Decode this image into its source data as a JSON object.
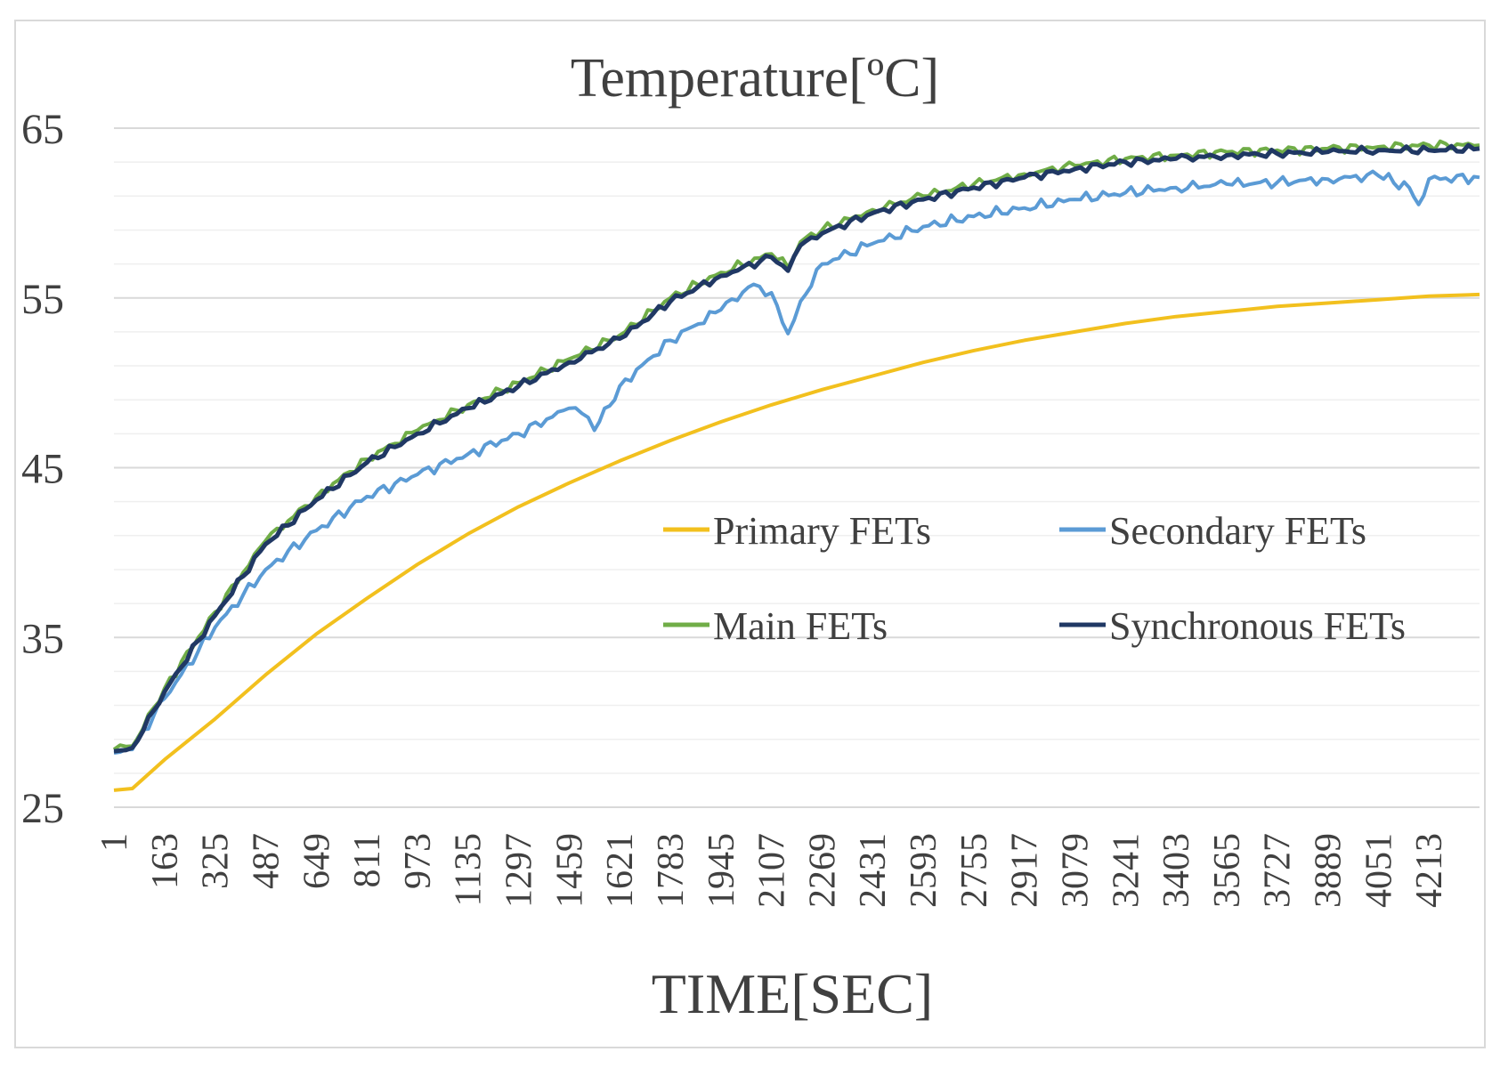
{
  "chart_data": {
    "type": "line",
    "title": "Temperature[ºC]",
    "xlabel": "TIME[SEC]",
    "ylabel": "",
    "ylim": [
      25,
      65
    ],
    "y_ticks": [
      "25",
      "35",
      "45",
      "55",
      "65"
    ],
    "x_range": [
      1,
      4375
    ],
    "x_tick_labels": [
      "1",
      "163",
      "325",
      "487",
      "649",
      "811",
      "973",
      "1135",
      "1297",
      "1459",
      "1621",
      "1783",
      "1945",
      "2107",
      "2269",
      "2431",
      "2593",
      "2755",
      "2917",
      "3079",
      "3241",
      "3403",
      "3565",
      "3727",
      "3889",
      "4051",
      "4213"
    ],
    "grid": "horizontal",
    "legend_position": "center-right",
    "series": [
      {
        "name": "Primary FETs",
        "color": "#f2c01e",
        "x": [
          1,
          60,
          163,
          325,
          487,
          649,
          811,
          973,
          1135,
          1297,
          1459,
          1621,
          1783,
          1945,
          2107,
          2269,
          2431,
          2593,
          2755,
          2917,
          3079,
          3241,
          3403,
          3565,
          3727,
          3889,
          4051,
          4213,
          4375
        ],
        "values": [
          26.0,
          26.1,
          27.8,
          30.2,
          32.8,
          35.2,
          37.3,
          39.3,
          41.1,
          42.7,
          44.1,
          45.4,
          46.6,
          47.7,
          48.7,
          49.6,
          50.4,
          51.2,
          51.9,
          52.5,
          53.0,
          53.5,
          53.9,
          54.2,
          54.5,
          54.7,
          54.9,
          55.1,
          55.2
        ]
      },
      {
        "name": "Secondary FETs",
        "color": "#5b9bd5",
        "x": [
          1,
          60,
          163,
          325,
          487,
          649,
          811,
          973,
          1135,
          1297,
          1459,
          1500,
          1540,
          1621,
          1783,
          1945,
          2050,
          2107,
          2160,
          2200,
          2269,
          2431,
          2593,
          2755,
          2917,
          3079,
          3241,
          3403,
          3565,
          3727,
          3889,
          4051,
          4150,
          4180,
          4213,
          4375
        ],
        "values": [
          28.2,
          28.4,
          31.4,
          35.6,
          39.0,
          41.3,
          43.3,
          44.6,
          45.8,
          47.0,
          48.5,
          48.2,
          47.2,
          49.8,
          52.5,
          54.3,
          55.8,
          55.3,
          52.9,
          54.8,
          57.0,
          58.2,
          59.2,
          59.8,
          60.3,
          60.8,
          61.2,
          61.5,
          61.7,
          61.8,
          62.0,
          62.2,
          61.5,
          60.5,
          62.0,
          62.1
        ]
      },
      {
        "name": "Main FETs",
        "color": "#70ad47",
        "x": [
          1,
          60,
          163,
          325,
          487,
          649,
          811,
          973,
          1135,
          1297,
          1459,
          1621,
          1783,
          1945,
          2107,
          2160,
          2200,
          2269,
          2431,
          2593,
          2755,
          2917,
          3079,
          3241,
          3403,
          3565,
          3727,
          3889,
          4051,
          4213,
          4375
        ],
        "values": [
          28.4,
          28.6,
          32.0,
          36.5,
          40.7,
          43.3,
          45.5,
          47.2,
          48.7,
          50.0,
          51.4,
          52.8,
          55.0,
          56.5,
          57.6,
          56.8,
          58.3,
          59.0,
          60.2,
          61.0,
          61.7,
          62.3,
          62.8,
          63.2,
          63.4,
          63.6,
          63.7,
          63.8,
          63.9,
          64.0,
          64.0
        ]
      },
      {
        "name": "Synchronous FETs",
        "color": "#203864",
        "x": [
          1,
          60,
          163,
          325,
          487,
          649,
          811,
          973,
          1135,
          1297,
          1459,
          1621,
          1783,
          1945,
          2107,
          2160,
          2200,
          2269,
          2431,
          2593,
          2755,
          2917,
          3079,
          3241,
          3403,
          3565,
          3727,
          3889,
          4051,
          4213,
          4375
        ],
        "values": [
          28.3,
          28.5,
          31.8,
          36.3,
          40.5,
          43.1,
          45.3,
          47.0,
          48.5,
          49.8,
          51.2,
          52.6,
          54.8,
          56.3,
          57.4,
          56.6,
          58.1,
          58.8,
          60.0,
          60.8,
          61.5,
          62.1,
          62.6,
          63.0,
          63.2,
          63.4,
          63.5,
          63.6,
          63.7,
          63.7,
          63.8
        ]
      }
    ]
  }
}
